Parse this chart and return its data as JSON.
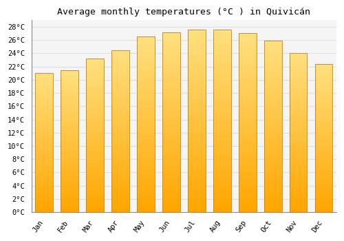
{
  "title": "Average monthly temperatures (°C ) in Quivicán",
  "months": [
    "Jan",
    "Feb",
    "Mar",
    "Apr",
    "May",
    "Jun",
    "Jul",
    "Aug",
    "Sep",
    "Oct",
    "Nov",
    "Dec"
  ],
  "values": [
    21.0,
    21.5,
    23.2,
    24.5,
    26.5,
    27.2,
    27.6,
    27.6,
    27.1,
    25.9,
    24.1,
    22.4
  ],
  "bar_color_bottom": "#FFA500",
  "bar_color_top": "#FFE080",
  "bar_edge_color": "#CC8000",
  "background_color": "#ffffff",
  "plot_bg_color": "#f5f5f5",
  "grid_color": "#dddddd",
  "ytick_step": 2,
  "ymin": 0,
  "ymax": 29,
  "title_fontsize": 9.5,
  "tick_fontsize": 7.5,
  "tick_font_family": "monospace",
  "title_font_family": "monospace",
  "bar_width": 0.7
}
